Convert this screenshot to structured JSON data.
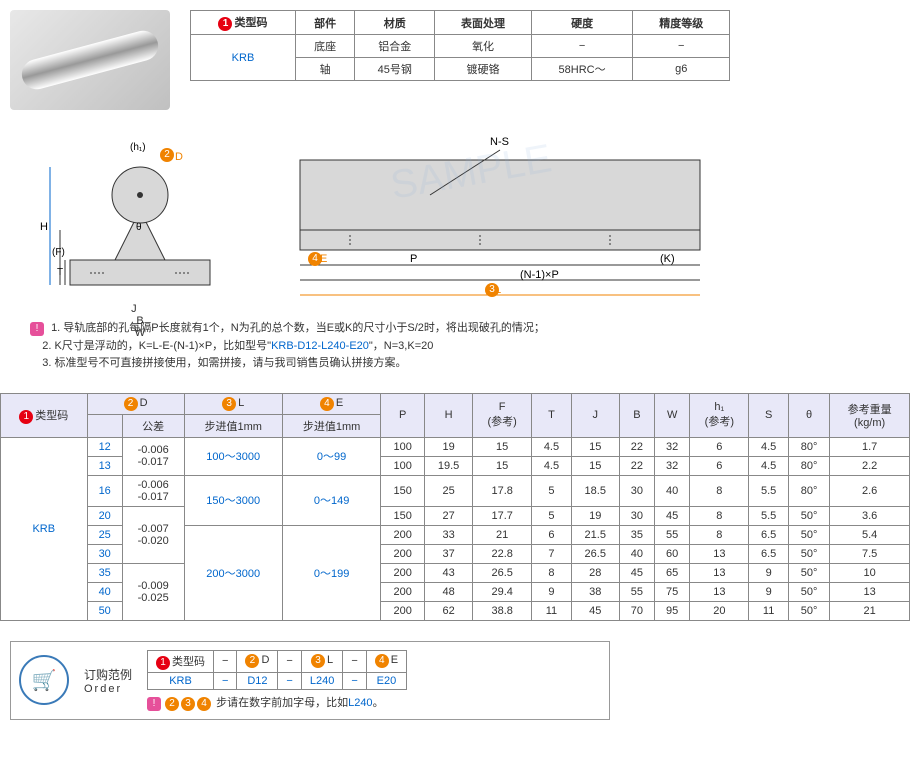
{
  "spec_table": {
    "headers": [
      "类型码",
      "部件",
      "材质",
      "表面处理",
      "硬度",
      "精度等级"
    ],
    "type_code": "KRB",
    "rows": [
      [
        "底座",
        "铝合金",
        "氧化",
        "−",
        "−"
      ],
      [
        "轴",
        "45号钢",
        "镀硬铬",
        "58HRC～",
        "g6"
      ]
    ]
  },
  "diagram_labels": {
    "h1": "(h₁)",
    "d": "D",
    "h": "H",
    "f": "(F)",
    "t": "T",
    "j": "J",
    "b": "B",
    "w": "W",
    "ns": "N-S",
    "e": "E",
    "p": "P",
    "np": "(N-1)×P",
    "k": "(K)",
    "l": "L",
    "theta": "θ"
  },
  "notes": {
    "n1": "1. 导轨底部的孔每隔P长度就有1个，N为孔的总个数，当E或K的尺寸小于S/2时，将出现破孔的情况；",
    "n2a": "2. K尺寸是浮动的，K=L-E-(N-1)×P，比如型号\"",
    "n2b": "KRB-D12-L240-E20",
    "n2c": "\"，N=3,K=20",
    "n3": "3. 标准型号不可直接拼接使用，如需拼接，请与我司销售员确认拼接方案。"
  },
  "main_table": {
    "headers": {
      "type": "类型码",
      "d": "D",
      "tol": "公差",
      "l": "L",
      "l_sub": "步进值1mm",
      "e": "E",
      "e_sub": "步进值1mm",
      "p": "P",
      "h": "H",
      "f": "F\n(参考)",
      "t": "T",
      "j": "J",
      "b": "B",
      "w": "W",
      "h1": "h₁\n(参考)",
      "s": "S",
      "theta": "θ",
      "weight": "参考重量\n(kg/m)"
    },
    "type_code": "KRB",
    "rows": [
      {
        "d": "12",
        "tol": "-0.006\n-0.017",
        "l": "100～3000",
        "e": "0～99",
        "p": "100",
        "h": "19",
        "f": "15",
        "t": "4.5",
        "j": "15",
        "b": "22",
        "w": "32",
        "h1": "6",
        "s": "4.5",
        "th": "80°",
        "wt": "1.7"
      },
      {
        "d": "13",
        "tol": "",
        "l": "",
        "e": "",
        "p": "100",
        "h": "19.5",
        "f": "15",
        "t": "4.5",
        "j": "15",
        "b": "22",
        "w": "32",
        "h1": "6",
        "s": "4.5",
        "th": "80°",
        "wt": "2.2"
      },
      {
        "d": "16",
        "tol": "",
        "l": "150～3000",
        "e": "0～149",
        "p": "150",
        "h": "25",
        "f": "17.8",
        "t": "5",
        "j": "18.5",
        "b": "30",
        "w": "40",
        "h1": "8",
        "s": "5.5",
        "th": "80°",
        "wt": "2.6"
      },
      {
        "d": "20",
        "tol": "-0.007\n-0.020",
        "l": "",
        "e": "",
        "p": "150",
        "h": "27",
        "f": "17.7",
        "t": "5",
        "j": "19",
        "b": "30",
        "w": "45",
        "h1": "8",
        "s": "5.5",
        "th": "50°",
        "wt": "3.6"
      },
      {
        "d": "25",
        "tol": "",
        "l": "200～3000",
        "e": "0～199",
        "p": "200",
        "h": "33",
        "f": "21",
        "t": "6",
        "j": "21.5",
        "b": "35",
        "w": "55",
        "h1": "8",
        "s": "6.5",
        "th": "50°",
        "wt": "5.4"
      },
      {
        "d": "30",
        "tol": "",
        "l": "",
        "e": "",
        "p": "200",
        "h": "37",
        "f": "22.8",
        "t": "7",
        "j": "26.5",
        "b": "40",
        "w": "60",
        "h1": "13",
        "s": "6.5",
        "th": "50°",
        "wt": "7.5"
      },
      {
        "d": "35",
        "tol": "-0.009\n-0.025",
        "l": "",
        "e": "",
        "p": "200",
        "h": "43",
        "f": "26.5",
        "t": "8",
        "j": "28",
        "b": "45",
        "w": "65",
        "h1": "13",
        "s": "9",
        "th": "50°",
        "wt": "10"
      },
      {
        "d": "40",
        "tol": "",
        "l": "",
        "e": "",
        "p": "200",
        "h": "48",
        "f": "29.4",
        "t": "9",
        "j": "38",
        "b": "55",
        "w": "75",
        "h1": "13",
        "s": "9",
        "th": "50°",
        "wt": "13"
      },
      {
        "d": "50",
        "tol": "",
        "l": "",
        "e": "",
        "p": "200",
        "h": "62",
        "f": "38.8",
        "t": "11",
        "j": "45",
        "b": "70",
        "w": "95",
        "h1": "20",
        "s": "11",
        "th": "50°",
        "wt": "21"
      }
    ]
  },
  "order": {
    "title1": "订购范例",
    "title2": "Order",
    "headers": [
      "类型码",
      "−",
      "D",
      "−",
      "L",
      "−",
      "E"
    ],
    "values": [
      "KRB",
      "−",
      "D12",
      "−",
      "L240",
      "−",
      "E20"
    ],
    "note_a": "步请在数字前加字母，比如",
    "note_b": "L240",
    "note_c": "。"
  }
}
